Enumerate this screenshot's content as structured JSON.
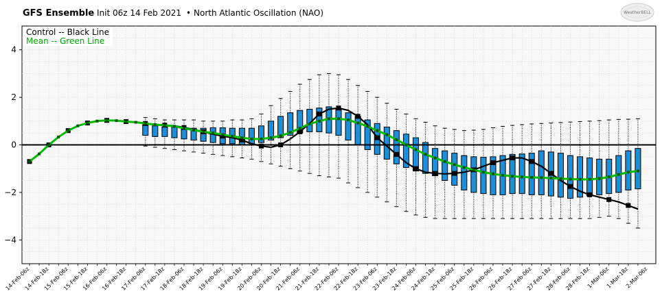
{
  "header": {
    "model": "GFS Ensemble",
    "init": "Init 06z 14 Feb 2021",
    "separator": "•",
    "index": "North Atlantic Oscillation (NAO)"
  },
  "logo": {
    "text": "WeatherBELL"
  },
  "colors": {
    "control": "#000000",
    "mean": "#00bb00",
    "box_fill": "#1e8fd6",
    "box_edge": "#000000",
    "zero_line": "#000000",
    "grid": "#d0d0d0",
    "plot_bg": "#f7f7f7"
  },
  "chart_data": {
    "type": "box",
    "title": "",
    "legend": {
      "placement": "top-left",
      "entries": [
        {
          "label": "Control -- Black Line",
          "color": "#000000"
        },
        {
          "label": "Mean -- Green Line",
          "color": "#00aa00"
        }
      ]
    },
    "ylim": [
      -5,
      5
    ],
    "yticks": [
      -4,
      -2,
      0,
      2,
      4
    ],
    "grid": true,
    "zero_line": true,
    "x_labels": [
      "14-Feb-06z",
      "14-Feb-18z",
      "15-Feb-06z",
      "15-Feb-18z",
      "16-Feb-06z",
      "16-Feb-18z",
      "17-Feb-06z",
      "17-Feb-18z",
      "18-Feb-06z",
      "18-Feb-18z",
      "19-Feb-06z",
      "19-Feb-18z",
      "20-Feb-06z",
      "20-Feb-18z",
      "21-Feb-06z",
      "21-Feb-18z",
      "22-Feb-06z",
      "22-Feb-18z",
      "23-Feb-06z",
      "23-Feb-18z",
      "24-Feb-06z",
      "24-Feb-18z",
      "25-Feb-06z",
      "25-Feb-18z",
      "26-Feb-06z",
      "26-Feb-18z",
      "27-Feb-06z",
      "27-Feb-18z",
      "28-Feb-06z",
      "28-Feb-18z",
      "1-Mar-06z",
      "1-Mar-18z",
      "2-Mar-06z"
    ],
    "x_label_every_steps": 2,
    "step_hours": 6,
    "series": [
      {
        "name": "Control",
        "values": [
          -0.7,
          -0.38,
          0.0,
          0.33,
          0.6,
          0.8,
          0.92,
          1.0,
          1.03,
          1.02,
          0.98,
          0.95,
          0.9,
          0.86,
          0.83,
          0.8,
          0.73,
          0.65,
          0.55,
          0.45,
          0.37,
          0.3,
          0.2,
          0.05,
          -0.05,
          -0.1,
          0.0,
          0.25,
          0.55,
          0.9,
          1.3,
          1.5,
          1.55,
          1.45,
          1.2,
          0.85,
          0.3,
          -0.05,
          -0.4,
          -0.75,
          -1.0,
          -1.15,
          -1.2,
          -1.22,
          -1.2,
          -1.15,
          -1.05,
          -0.9,
          -0.75,
          -0.65,
          -0.55,
          -0.55,
          -0.7,
          -0.9,
          -1.2,
          -1.5,
          -1.75,
          -1.95,
          -2.1,
          -2.2,
          -2.3,
          -2.4,
          -2.55,
          -2.7
        ]
      },
      {
        "name": "Mean",
        "values": [
          -0.7,
          -0.38,
          0.0,
          0.33,
          0.6,
          0.8,
          0.92,
          1.0,
          1.03,
          1.02,
          0.98,
          0.95,
          0.9,
          0.85,
          0.82,
          0.78,
          0.7,
          0.62,
          0.55,
          0.5,
          0.43,
          0.36,
          0.3,
          0.25,
          0.25,
          0.3,
          0.38,
          0.52,
          0.7,
          0.88,
          1.0,
          1.1,
          1.1,
          1.05,
          0.92,
          0.78,
          0.6,
          0.43,
          0.22,
          0.0,
          -0.2,
          -0.4,
          -0.55,
          -0.7,
          -0.83,
          -0.95,
          -1.05,
          -1.15,
          -1.22,
          -1.28,
          -1.32,
          -1.35,
          -1.37,
          -1.38,
          -1.4,
          -1.42,
          -1.44,
          -1.45,
          -1.45,
          -1.42,
          -1.35,
          -1.25,
          -1.15,
          -1.1
        ]
      }
    ],
    "boxes": {
      "start_step": 12,
      "q1": [
        0.4,
        0.35,
        0.35,
        0.3,
        0.25,
        0.2,
        0.15,
        0.1,
        0.05,
        0.05,
        0.0,
        0.05,
        0.1,
        0.2,
        0.3,
        0.4,
        0.5,
        0.55,
        0.55,
        0.5,
        0.4,
        0.2,
        0.0,
        -0.2,
        -0.4,
        -0.6,
        -0.8,
        -0.95,
        -1.1,
        -1.2,
        -1.3,
        -1.5,
        -1.7,
        -1.9,
        -2.0,
        -2.05,
        -2.1,
        -2.1,
        -2.05,
        -2.05,
        -2.1,
        -2.1,
        -2.15,
        -2.2,
        -2.25,
        -2.2,
        -2.15,
        -2.1,
        -2.05,
        -2.0,
        -1.9,
        -1.85
      ],
      "q3": [
        0.85,
        0.8,
        0.75,
        0.75,
        0.7,
        0.7,
        0.7,
        0.72,
        0.72,
        0.7,
        0.7,
        0.7,
        0.8,
        1.0,
        1.2,
        1.35,
        1.45,
        1.5,
        1.55,
        1.6,
        1.5,
        1.35,
        1.2,
        1.05,
        0.9,
        0.75,
        0.6,
        0.45,
        0.3,
        0.1,
        -0.15,
        -0.25,
        -0.35,
        -0.45,
        -0.5,
        -0.52,
        -0.5,
        -0.45,
        -0.4,
        -0.38,
        -0.35,
        -0.25,
        -0.3,
        -0.35,
        -0.45,
        -0.5,
        -0.55,
        -0.6,
        -0.6,
        -0.45,
        -0.25,
        -0.15
      ],
      "low": [
        -0.05,
        -0.1,
        -0.15,
        -0.2,
        -0.25,
        -0.3,
        -0.35,
        -0.4,
        -0.45,
        -0.5,
        -0.55,
        -0.6,
        -0.7,
        -0.8,
        -0.9,
        -1.0,
        -1.1,
        -1.2,
        -1.3,
        -1.35,
        -1.4,
        -1.6,
        -1.8,
        -2.0,
        -2.2,
        -2.4,
        -2.6,
        -2.8,
        -2.95,
        -3.05,
        -3.1,
        -3.1,
        -3.1,
        -3.1,
        -3.1,
        -3.1,
        -3.1,
        -3.1,
        -3.1,
        -3.1,
        -3.1,
        -3.1,
        -3.1,
        -3.1,
        -3.1,
        -3.1,
        -3.1,
        -3.05,
        -3.0,
        -3.1,
        -3.3,
        -3.5
      ],
      "high": [
        1.15,
        1.1,
        1.05,
        1.05,
        1.05,
        1.05,
        1.0,
        1.0,
        1.0,
        1.05,
        1.05,
        1.1,
        1.3,
        1.65,
        1.95,
        2.25,
        2.55,
        2.75,
        2.95,
        3.0,
        2.95,
        2.75,
        2.5,
        2.25,
        2.0,
        1.75,
        1.5,
        1.3,
        1.1,
        0.95,
        0.8,
        0.7,
        0.65,
        0.6,
        0.62,
        0.65,
        0.72,
        0.78,
        0.82,
        0.85,
        0.88,
        0.9,
        0.92,
        0.94,
        0.96,
        0.98,
        1.0,
        1.02,
        1.05,
        1.07,
        1.08,
        1.1
      ]
    }
  }
}
